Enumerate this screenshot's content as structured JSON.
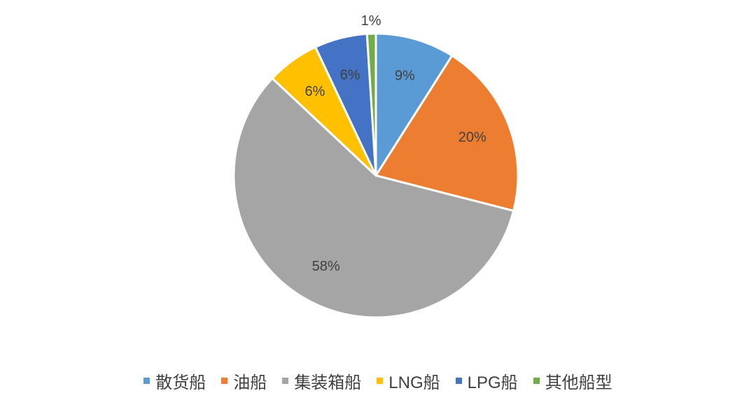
{
  "chart_data": {
    "type": "pie",
    "start_angle_deg": 0,
    "direction": "clockwise",
    "legend_position": "bottom",
    "slices": [
      {
        "label": "散货船",
        "value": 9,
        "display": "9%",
        "color": "#5B9BD5"
      },
      {
        "label": "油船",
        "value": 20,
        "display": "20%",
        "color": "#ED7D31"
      },
      {
        "label": "集装箱船",
        "value": 58,
        "display": "58%",
        "color": "#A5A5A5"
      },
      {
        "label": "LNG船",
        "value": 6,
        "display": "6%",
        "color": "#FFC000"
      },
      {
        "label": "LPG船",
        "value": 6,
        "display": "6%",
        "color": "#4472C4"
      },
      {
        "label": "其他船型",
        "value": 1,
        "display": "1%",
        "color": "#70AD47"
      }
    ]
  }
}
